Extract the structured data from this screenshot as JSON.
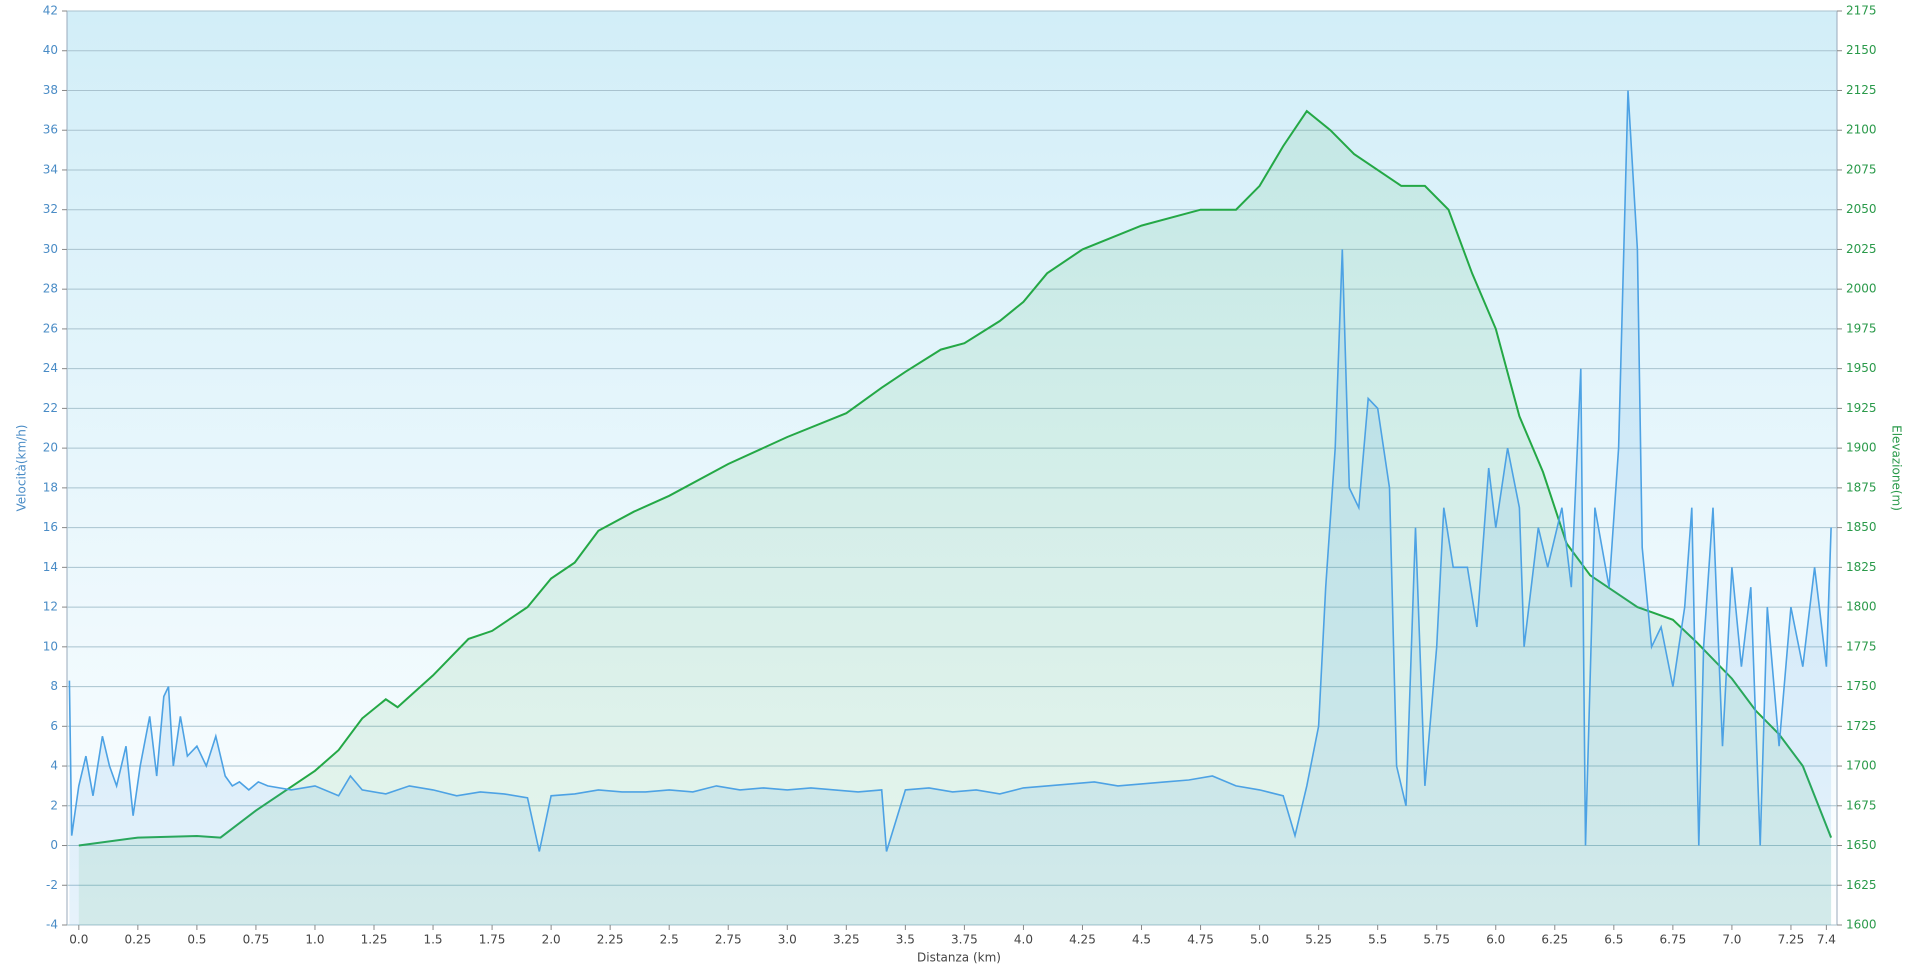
{
  "chart_data": {
    "type": "line",
    "x_label": "Distanza  (km)",
    "y_label": "Velocità(km/h)",
    "y2_label": "Elevazione(m)",
    "xlim": [
      -0.05,
      7.445
    ],
    "xticks": [
      {
        "value": 0,
        "label": "0.0"
      },
      0.25,
      0.5,
      0.75,
      {
        "value": 1,
        "label": "1.0"
      },
      1.25,
      1.5,
      1.75,
      {
        "value": 2,
        "label": "2.0"
      },
      2.25,
      2.5,
      2.75,
      {
        "value": 3,
        "label": "3.0"
      },
      3.25,
      3.5,
      3.75,
      {
        "value": 4,
        "label": "4.0"
      },
      4.25,
      4.5,
      4.75,
      {
        "value": 5,
        "label": "5.0"
      },
      5.25,
      5.5,
      5.75,
      {
        "value": 6,
        "label": "6.0"
      },
      6.25,
      6.5,
      6.75,
      {
        "value": 7,
        "label": "7.0"
      },
      7.25,
      7.4
    ],
    "ylim": [
      -4,
      42
    ],
    "yticks": [
      -4,
      -2,
      0,
      2,
      4,
      6,
      8,
      10,
      12,
      14,
      16,
      18,
      20,
      22,
      24,
      26,
      28,
      30,
      32,
      34,
      36,
      38,
      40,
      42
    ],
    "y2lim": [
      1600,
      2175
    ],
    "y2ticks": [
      1600,
      1625,
      1650,
      1675,
      1700,
      1725,
      1750,
      1775,
      1800,
      1825,
      1850,
      1875,
      1900,
      1925,
      1950,
      1975,
      2000,
      2025,
      2050,
      2075,
      2100,
      2125,
      2150,
      2175
    ],
    "grid": true,
    "series": [
      {
        "name": "Velocità",
        "color": "#4da2e4",
        "x": [
          -0.04,
          -0.03,
          0,
          0.03,
          0.06,
          0.1,
          0.13,
          0.16,
          0.2,
          0.23,
          0.26,
          0.3,
          0.33,
          0.36,
          0.38,
          0.4,
          0.43,
          0.46,
          0.5,
          0.54,
          0.58,
          0.62,
          0.65,
          0.68,
          0.72,
          0.76,
          0.8,
          0.9,
          1.0,
          1.1,
          1.15,
          1.2,
          1.3,
          1.4,
          1.5,
          1.6,
          1.7,
          1.8,
          1.9,
          1.95,
          2.0,
          2.1,
          2.2,
          2.3,
          2.4,
          2.5,
          2.6,
          2.7,
          2.8,
          2.9,
          3.0,
          3.1,
          3.2,
          3.3,
          3.4,
          3.42,
          3.5,
          3.6,
          3.7,
          3.8,
          3.9,
          4.0,
          4.1,
          4.2,
          4.3,
          4.4,
          4.5,
          4.6,
          4.7,
          4.8,
          4.9,
          5.0,
          5.1,
          5.15,
          5.2,
          5.25,
          5.28,
          5.32,
          5.35,
          5.38,
          5.42,
          5.46,
          5.5,
          5.55,
          5.58,
          5.62,
          5.66,
          5.7,
          5.75,
          5.78,
          5.82,
          5.88,
          5.92,
          5.97,
          6.0,
          6.05,
          6.1,
          6.12,
          6.18,
          6.22,
          6.28,
          6.32,
          6.36,
          6.38,
          6.42,
          6.45,
          6.48,
          6.52,
          6.56,
          6.6,
          6.62,
          6.66,
          6.7,
          6.75,
          6.8,
          6.83,
          6.86,
          6.88,
          6.92,
          6.96,
          7.0,
          7.04,
          7.08,
          7.12,
          7.15,
          7.2,
          7.25,
          7.3,
          7.35,
          7.4,
          7.42
        ],
        "values": [
          8.3,
          0.5,
          3,
          4.5,
          2.5,
          5.5,
          4,
          3,
          5,
          1.5,
          4,
          6.5,
          3.5,
          7.5,
          8,
          4,
          6.5,
          4.5,
          5,
          4,
          5.5,
          3.5,
          3,
          3.2,
          2.8,
          3.2,
          3,
          2.8,
          3,
          2.5,
          3.5,
          2.8,
          2.6,
          3,
          2.8,
          2.5,
          2.7,
          2.6,
          2.4,
          -0.3,
          2.5,
          2.6,
          2.8,
          2.7,
          2.7,
          2.8,
          2.7,
          3,
          2.8,
          2.9,
          2.8,
          2.9,
          2.8,
          2.7,
          2.8,
          -0.3,
          2.8,
          2.9,
          2.7,
          2.8,
          2.6,
          2.9,
          3,
          3.1,
          3.2,
          3,
          3.1,
          3.2,
          3.3,
          3.5,
          3,
          2.8,
          2.5,
          0.5,
          3,
          6,
          13,
          20,
          30,
          18,
          17,
          22.5,
          22,
          18,
          4,
          2,
          16,
          3,
          10,
          17,
          14,
          14,
          11,
          19,
          16,
          20,
          17,
          10,
          16,
          14,
          17,
          13,
          24,
          0,
          17,
          15,
          13,
          20,
          38,
          30,
          15,
          10,
          11,
          8,
          12,
          17,
          0,
          10,
          17,
          5,
          14,
          9,
          13,
          0,
          12,
          5,
          12,
          9,
          14,
          9,
          16
        ]
      },
      {
        "name": "Elevazione",
        "color": "#24a846",
        "axis": "y2",
        "x": [
          0,
          0.25,
          0.5,
          0.6,
          0.75,
          1.0,
          1.1,
          1.2,
          1.3,
          1.35,
          1.5,
          1.65,
          1.75,
          1.9,
          2.0,
          2.1,
          2.2,
          2.35,
          2.5,
          2.75,
          3.0,
          3.25,
          3.4,
          3.5,
          3.65,
          3.75,
          3.9,
          4.0,
          4.1,
          4.25,
          4.5,
          4.75,
          4.9,
          5.0,
          5.1,
          5.2,
          5.3,
          5.4,
          5.6,
          5.7,
          5.8,
          5.9,
          6.0,
          6.1,
          6.2,
          6.3,
          6.4,
          6.5,
          6.6,
          6.75,
          6.85,
          7.0,
          7.1,
          7.2,
          7.3,
          7.42
        ],
        "values": [
          1650,
          1655,
          1656,
          1655,
          1672,
          1697,
          1710,
          1730,
          1742,
          1737,
          1757,
          1780,
          1785,
          1800,
          1818,
          1828,
          1848,
          1860,
          1870,
          1890,
          1907,
          1922,
          1938,
          1948,
          1962,
          1966,
          1980,
          1992,
          2010,
          2025,
          2040,
          2050,
          2050,
          2065,
          2090,
          2112,
          2100,
          2085,
          2065,
          2065,
          2050,
          2010,
          1975,
          1920,
          1885,
          1840,
          1820,
          1810,
          1800,
          1792,
          1778,
          1755,
          1735,
          1720,
          1700,
          1655
        ]
      }
    ]
  }
}
